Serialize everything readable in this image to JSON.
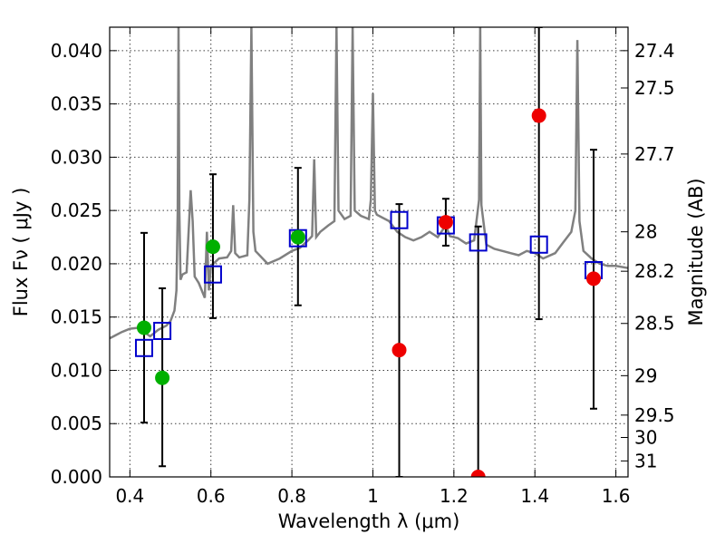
{
  "chart_data": {
    "type": "scatter",
    "title": "",
    "xlabel": "Wavelength  λ (μm)",
    "ylabel": "Flux  Fν  ( μJy )",
    "ylabel_right": "Magnitude (AB)",
    "xlim": [
      0.35,
      1.63
    ],
    "ylim": [
      0.0,
      0.0422
    ],
    "grid": true,
    "x_ticks": [
      0.4,
      0.6,
      0.8,
      1.0,
      1.2,
      1.4,
      1.6
    ],
    "x_tick_labels": [
      "0.4",
      "0.6",
      "0.8",
      "1",
      "1.2",
      "1.4",
      "1.6"
    ],
    "y_ticks": [
      0.0,
      0.005,
      0.01,
      0.015,
      0.02,
      0.025,
      0.03,
      0.035,
      0.04
    ],
    "y_tick_labels": [
      "0.000",
      "0.005",
      "0.010",
      "0.015",
      "0.020",
      "0.025",
      "0.030",
      "0.035",
      "0.040"
    ],
    "mag_ticks": [
      {
        "label": "27.4",
        "flux": 0.04
      },
      {
        "label": "27.5",
        "flux": 0.0365
      },
      {
        "label": "27.7",
        "flux": 0.0303
      },
      {
        "label": "28",
        "flux": 0.023
      },
      {
        "label": "28.2",
        "flux": 0.0193
      },
      {
        "label": "28.5",
        "flux": 0.0144
      },
      {
        "label": "29",
        "flux": 0.0095
      },
      {
        "label": "29.5",
        "flux": 0.0058
      },
      {
        "label": "30",
        "flux": 0.0037
      },
      {
        "label": "31",
        "flux": 0.0015
      }
    ],
    "colors": {
      "model": "#808080",
      "green": "#00b000",
      "red": "#ee0000",
      "blue": "#0000cc",
      "errorbar": "#000000"
    },
    "series": [
      {
        "name": "model spectrum",
        "kind": "line",
        "x": [
          0.35,
          0.38,
          0.4,
          0.42,
          0.45,
          0.47,
          0.49,
          0.5,
          0.51,
          0.515,
          0.518,
          0.52,
          0.522,
          0.525,
          0.53,
          0.54,
          0.55,
          0.555,
          0.56,
          0.57,
          0.585,
          0.59,
          0.595,
          0.6,
          0.62,
          0.64,
          0.65,
          0.655,
          0.66,
          0.67,
          0.69,
          0.695,
          0.7,
          0.705,
          0.71,
          0.74,
          0.77,
          0.8,
          0.82,
          0.84,
          0.85,
          0.855,
          0.86,
          0.87,
          0.89,
          0.905,
          0.91,
          0.915,
          0.93,
          0.945,
          0.95,
          0.955,
          0.97,
          0.99,
          0.995,
          1.0,
          1.005,
          1.01,
          1.04,
          1.06,
          1.08,
          1.1,
          1.12,
          1.14,
          1.16,
          1.18,
          1.19,
          1.21,
          1.23,
          1.25,
          1.262,
          1.265,
          1.268,
          1.28,
          1.3,
          1.32,
          1.34,
          1.36,
          1.38,
          1.4,
          1.42,
          1.45,
          1.47,
          1.49,
          1.5,
          1.505,
          1.51,
          1.52,
          1.54,
          1.56,
          1.58,
          1.6,
          1.63
        ],
        "y": [
          0.013,
          0.0136,
          0.0139,
          0.014,
          0.0132,
          0.0138,
          0.0142,
          0.0146,
          0.0156,
          0.0175,
          0.025,
          0.0422,
          0.025,
          0.0185,
          0.019,
          0.0192,
          0.0269,
          0.024,
          0.0188,
          0.0182,
          0.0168,
          0.023,
          0.0175,
          0.0198,
          0.0205,
          0.0206,
          0.0212,
          0.0255,
          0.021,
          0.0206,
          0.0208,
          0.026,
          0.0422,
          0.023,
          0.0212,
          0.02,
          0.0205,
          0.0212,
          0.0215,
          0.0222,
          0.0226,
          0.0298,
          0.0225,
          0.023,
          0.0236,
          0.024,
          0.0422,
          0.025,
          0.0242,
          0.0245,
          0.0422,
          0.025,
          0.0245,
          0.0242,
          0.026,
          0.036,
          0.025,
          0.0246,
          0.024,
          0.023,
          0.0225,
          0.0222,
          0.0225,
          0.023,
          0.0225,
          0.0236,
          0.0226,
          0.0224,
          0.0219,
          0.0222,
          0.026,
          0.0422,
          0.0255,
          0.0218,
          0.0214,
          0.0212,
          0.021,
          0.0208,
          0.0212,
          0.021,
          0.0205,
          0.021,
          0.022,
          0.023,
          0.025,
          0.041,
          0.024,
          0.0212,
          0.0205,
          0.02,
          0.0198,
          0.0198,
          0.0196
        ]
      },
      {
        "name": "green points",
        "kind": "points",
        "points": [
          {
            "x": 0.435,
            "y": 0.014
          },
          {
            "x": 0.48,
            "y": 0.0093
          },
          {
            "x": 0.605,
            "y": 0.0216
          },
          {
            "x": 0.815,
            "y": 0.0225
          }
        ]
      },
      {
        "name": "red points",
        "kind": "points",
        "points": [
          {
            "x": 1.065,
            "y": 0.0119
          },
          {
            "x": 1.18,
            "y": 0.0239
          },
          {
            "x": 1.26,
            "y": 0.0
          },
          {
            "x": 1.41,
            "y": 0.0339
          },
          {
            "x": 1.545,
            "y": 0.0186
          }
        ]
      },
      {
        "name": "model bandpass flux",
        "kind": "squares",
        "points": [
          {
            "x": 0.435,
            "y": 0.0121
          },
          {
            "x": 0.48,
            "y": 0.0137
          },
          {
            "x": 0.605,
            "y": 0.019
          },
          {
            "x": 0.815,
            "y": 0.0224
          },
          {
            "x": 1.065,
            "y": 0.0241
          },
          {
            "x": 1.18,
            "y": 0.0236
          },
          {
            "x": 1.26,
            "y": 0.022
          },
          {
            "x": 1.41,
            "y": 0.0218
          },
          {
            "x": 1.545,
            "y": 0.0194
          }
        ]
      },
      {
        "name": "error bars",
        "kind": "errorbars",
        "bars": [
          {
            "x": 0.435,
            "lo": 0.0051,
            "hi": 0.0229
          },
          {
            "x": 0.48,
            "lo": 0.001,
            "hi": 0.0177
          },
          {
            "x": 0.605,
            "lo": 0.0149,
            "hi": 0.0284
          },
          {
            "x": 0.815,
            "lo": 0.0161,
            "hi": 0.029
          },
          {
            "x": 1.065,
            "lo": 0.0,
            "hi": 0.0256
          },
          {
            "x": 1.18,
            "lo": 0.0217,
            "hi": 0.0261
          },
          {
            "x": 1.26,
            "lo": 0.0,
            "hi": 0.0235
          },
          {
            "x": 1.41,
            "lo": 0.0148,
            "hi": 0.0422
          },
          {
            "x": 1.545,
            "lo": 0.0064,
            "hi": 0.0307
          }
        ]
      }
    ]
  }
}
